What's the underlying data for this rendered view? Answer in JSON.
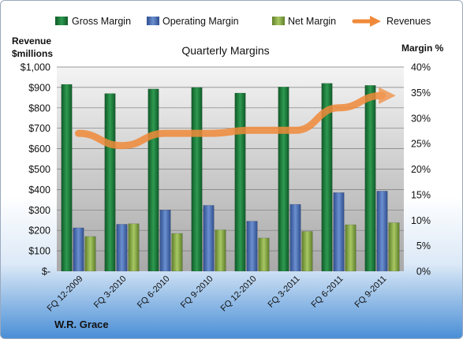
{
  "chart_data": {
    "type": "bar",
    "title": "Quarterly Margins",
    "footer": "W.R. Grace",
    "left_axis_label_line1": "Revenue",
    "left_axis_label_line2": "$millions",
    "right_axis_label": "Margin %",
    "categories": [
      "FQ 12-2009",
      "FQ 3-2010",
      "FQ 6-2010",
      "FQ 9-2010",
      "FQ 12-2010",
      "FQ 3-2011",
      "FQ 6-2011",
      "FQ 9-2011"
    ],
    "left_ticks": [
      "$-",
      "$100",
      "$200",
      "$300",
      "$400",
      "$500",
      "$600",
      "$700",
      "$800",
      "$900",
      "$1,000"
    ],
    "right_ticks": [
      "0%",
      "5%",
      "10%",
      "15%",
      "20%",
      "25%",
      "30%",
      "35%",
      "40%"
    ],
    "ylim_left": [
      0,
      1000
    ],
    "ylim_right": [
      0,
      40
    ],
    "grid": true,
    "legend_position": "top",
    "series": [
      {
        "name": "Gross Margin",
        "axis": "right",
        "kind": "bar",
        "color": "#1f7a3c",
        "values": [
          36.6,
          34.8,
          35.7,
          36.0,
          34.9,
          36.1,
          36.8,
          36.4
        ]
      },
      {
        "name": "Operating Margin",
        "axis": "right",
        "kind": "bar",
        "color": "#4a6fb0",
        "values": [
          8.5,
          9.2,
          12.0,
          12.9,
          9.8,
          13.1,
          15.4,
          15.7
        ]
      },
      {
        "name": "Net Margin",
        "axis": "right",
        "kind": "bar",
        "color": "#8db04a",
        "values": [
          6.8,
          9.3,
          7.4,
          8.1,
          6.5,
          7.8,
          9.1,
          9.5
        ]
      },
      {
        "name": "Revenues",
        "axis": "left",
        "kind": "line",
        "color": "#f08a3a",
        "values": [
          675,
          615,
          675,
          675,
          690,
          690,
          800,
          860
        ]
      }
    ]
  }
}
